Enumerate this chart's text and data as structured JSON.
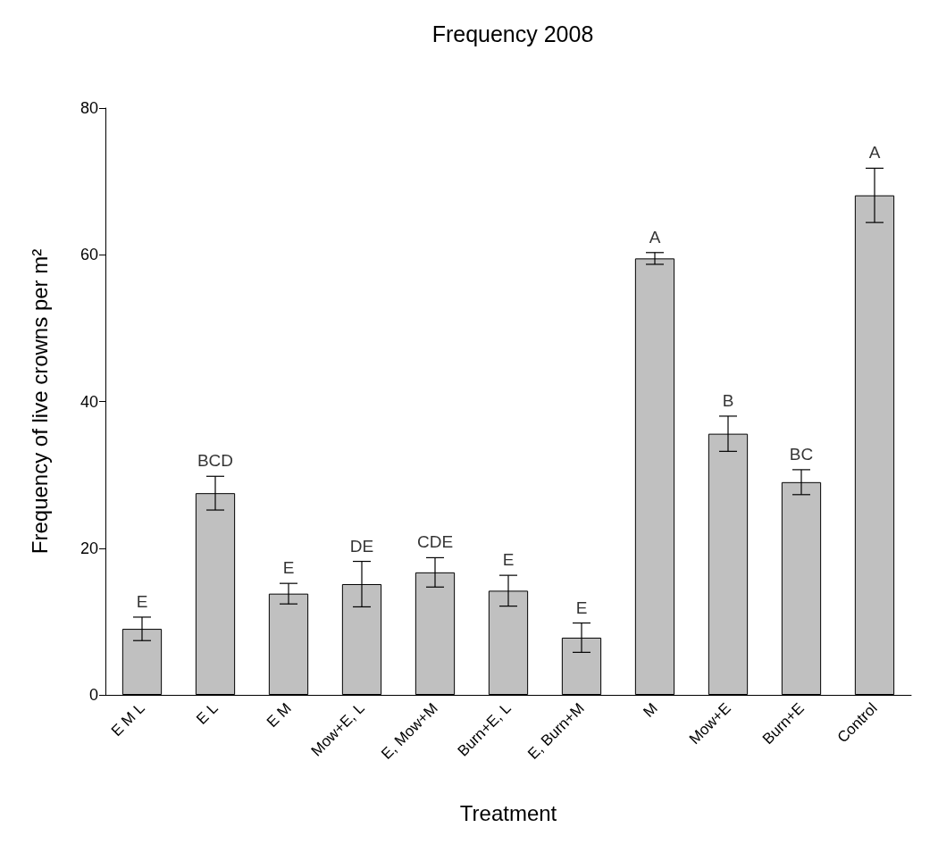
{
  "chart_data": {
    "type": "bar",
    "title": "Frequency 2008",
    "xlabel": "Treatment",
    "ylabel": "Frequency of live crowns per m²",
    "categories": [
      "E M L",
      "E L",
      "E M",
      "Mow+E, L",
      "E, Mow+M",
      "Burn+E, L",
      "E, Burn+M",
      "M",
      "Mow+E",
      "Burn+E",
      "Control"
    ],
    "values": [
      9.0,
      27.5,
      13.8,
      15.1,
      16.7,
      14.2,
      7.8,
      59.5,
      35.6,
      29.0,
      68.1
    ],
    "errors": [
      1.6,
      2.3,
      1.4,
      3.1,
      2.0,
      2.1,
      2.0,
      0.8,
      2.4,
      1.7,
      3.7
    ],
    "color": "#c0c0c0",
    "ylim": [
      0,
      80
    ],
    "yticks": [
      0,
      20,
      40,
      60,
      80
    ],
    "grid": false,
    "annotations": [
      {
        "text": "E",
        "x": "E M L",
        "y": 10.6
      },
      {
        "text": "BCD",
        "x": "E L",
        "y": 29.8
      },
      {
        "text": "E",
        "x": "E M",
        "y": 15.2
      },
      {
        "text": "DE",
        "x": "Mow+E, L",
        "y": 18.2
      },
      {
        "text": "CDE",
        "x": "E, Mow+M",
        "y": 18.7
      },
      {
        "text": "E",
        "x": "Burn+E, L",
        "y": 16.3
      },
      {
        "text": "E",
        "x": "E, Burn+M",
        "y": 9.8
      },
      {
        "text": "A",
        "x": "M",
        "y": 60.3
      },
      {
        "text": "B",
        "x": "Mow+E",
        "y": 38.0
      },
      {
        "text": "BC",
        "x": "Burn+E",
        "y": 30.7
      },
      {
        "text": "A",
        "x": "Control",
        "y": 71.8
      }
    ]
  }
}
